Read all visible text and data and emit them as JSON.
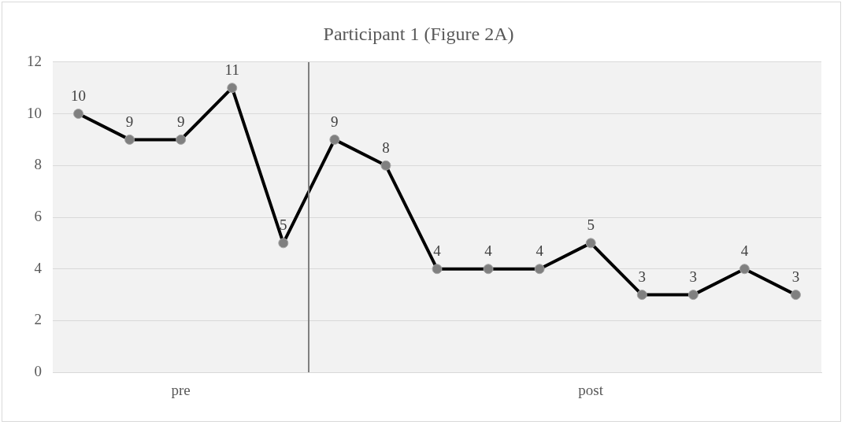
{
  "chart_data": {
    "type": "line",
    "title": "Participant 1 (Figure 2A)",
    "categories": [
      null,
      null,
      "pre",
      null,
      null,
      null,
      null,
      null,
      null,
      null,
      "post",
      null,
      null,
      null,
      null
    ],
    "series": [
      {
        "color": "#000000",
        "values": [
          10,
          9,
          9,
          11,
          5,
          9,
          8,
          4,
          4,
          4,
          5,
          3,
          3,
          4,
          3
        ]
      }
    ],
    "ylim": [
      0,
      12
    ],
    "yticks": [
      0,
      2,
      4,
      6,
      8,
      10,
      12
    ],
    "grid": "y",
    "legend": false,
    "marker": "circle",
    "line_style": "solid",
    "data_labels": true
  }
}
